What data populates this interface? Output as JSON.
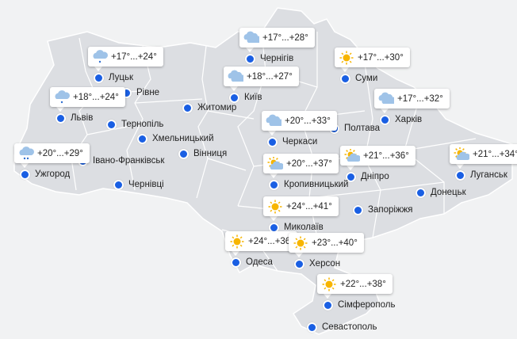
{
  "colors": {
    "land": "#dcdee2",
    "border": "#ffffff",
    "background": "#f1f2f3",
    "dot": "#1a5fe3",
    "sun": "#f7b500",
    "cloud": "#9fc3e8",
    "rain": "#2f6fd0"
  },
  "cities": [
    {
      "name": "Чернігів"
    },
    {
      "name": "Луцьк"
    },
    {
      "name": "Суми"
    },
    {
      "name": "Київ"
    },
    {
      "name": "Рівне"
    },
    {
      "name": "Житомир"
    },
    {
      "name": "Львів"
    },
    {
      "name": "Харків"
    },
    {
      "name": "Тернопіль"
    },
    {
      "name": "Полтава"
    },
    {
      "name": "Хмельницький"
    },
    {
      "name": "Черкаси"
    },
    {
      "name": "Вінниця"
    },
    {
      "name": "Ужгород"
    },
    {
      "name": "Івано-Франківськ"
    },
    {
      "name": "Дніпро"
    },
    {
      "name": "Луганськ"
    },
    {
      "name": "Кропивницький"
    },
    {
      "name": "Чернівці"
    },
    {
      "name": "Донецьк"
    },
    {
      "name": "Миколаїв"
    },
    {
      "name": "Запоріжжя"
    },
    {
      "name": "Одеса"
    },
    {
      "name": "Херсон"
    },
    {
      "name": "Сімферополь"
    },
    {
      "name": "Севастополь"
    }
  ],
  "forecasts": [
    {
      "city": "Чернігів",
      "icon": "cloudy-icon",
      "temp": "+17°...+28°"
    },
    {
      "city": "Луцьк",
      "icon": "rain-icon",
      "temp": "+17°...+24°"
    },
    {
      "city": "Суми",
      "icon": "sun-icon",
      "temp": "+17°...+30°"
    },
    {
      "city": "Київ",
      "icon": "cloudy-icon",
      "temp": "+18°...+27°"
    },
    {
      "city": "Львів",
      "icon": "rain-icon",
      "temp": "+18°...+24°"
    },
    {
      "city": "Харків",
      "icon": "cloudy-icon",
      "temp": "+17°...+32°"
    },
    {
      "city": "Черкаси",
      "icon": "cloudy-icon",
      "temp": "+20°...+33°"
    },
    {
      "city": "Ужгород",
      "icon": "heavy-rain-icon",
      "temp": "+20°...+29°"
    },
    {
      "city": "Дніпро",
      "icon": "partly-cloudy-icon",
      "temp": "+21°...+36°"
    },
    {
      "city": "Луганськ",
      "icon": "partly-cloudy-icon",
      "temp": "+21°...+34°"
    },
    {
      "city": "Кропивницький",
      "icon": "partly-cloudy-icon",
      "temp": "+20°...+37°"
    },
    {
      "city": "Миколаїв",
      "icon": "sun-icon",
      "temp": "+24°...+41°"
    },
    {
      "city": "Одеса",
      "icon": "sun-icon",
      "temp": "+24°...+36°"
    },
    {
      "city": "Херсон",
      "icon": "sun-icon",
      "temp": "+23°...+40°"
    },
    {
      "city": "Сімферополь",
      "icon": "sun-icon",
      "temp": "+22°...+38°"
    }
  ]
}
